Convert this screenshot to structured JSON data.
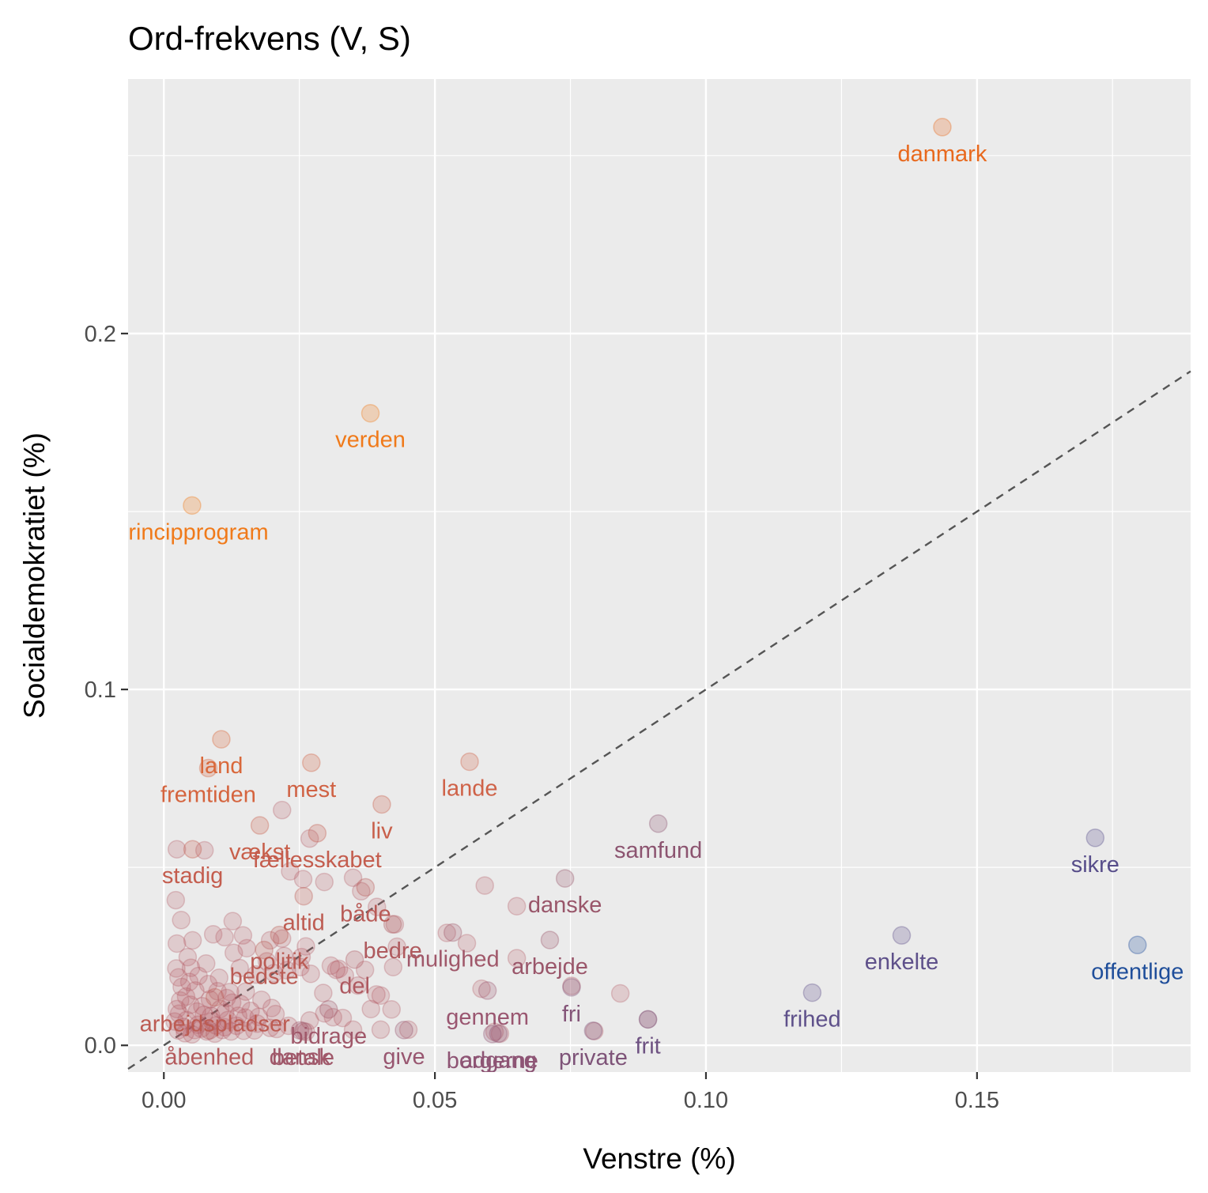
{
  "chart_data": {
    "type": "scatter",
    "title": "Ord-frekvens (V, S)",
    "xlabel": "Venstre (%)",
    "ylabel": "Socialdemokratiet (%)",
    "xlim": [
      -0.0066,
      0.1894
    ],
    "ylim": [
      -0.0075,
      0.2715
    ],
    "x_ticks": [
      0.0,
      0.05,
      0.1,
      0.15
    ],
    "x_tick_labels": [
      "0.00",
      "0.05",
      "0.10",
      "0.15"
    ],
    "y_ticks": [
      0.0,
      0.1,
      0.2
    ],
    "y_tick_labels": [
      "0.0",
      "0.1",
      "0.2"
    ],
    "grid": true,
    "legend": "none",
    "reference_line": {
      "type": "identity",
      "slope": 1,
      "intercept": 0,
      "style": "dashed",
      "color": "#555555"
    },
    "colors": {
      "panel_background": "#EBEBEB",
      "grid": "#FFFFFF",
      "high_S": "#F07A1A",
      "mid": "#B45A62",
      "low_S": "#5B4E8C",
      "high_V": "#1F4E9A"
    },
    "labeled_points": [
      {
        "word": "danmark",
        "x": 0.1436,
        "y": 0.258,
        "color": "#E8691E"
      },
      {
        "word": "verden",
        "x": 0.0381,
        "y": 0.1776,
        "color": "#F07A1A"
      },
      {
        "word": "principprogram",
        "x": 0.0052,
        "y": 0.1517,
        "color": "#F07A1A"
      },
      {
        "word": "land",
        "x": 0.0106,
        "y": 0.086,
        "color": "#D9683A"
      },
      {
        "word": "fremtiden",
        "x": 0.0082,
        "y": 0.0779,
        "color": "#D5643E"
      },
      {
        "word": "mest",
        "x": 0.0272,
        "y": 0.0794,
        "color": "#D06244"
      },
      {
        "word": "lande",
        "x": 0.0564,
        "y": 0.0797,
        "color": "#CF6248"
      },
      {
        "word": "liv",
        "x": 0.0402,
        "y": 0.0677,
        "color": "#C85F4A"
      },
      {
        "word": "vækst",
        "x": 0.0177,
        "y": 0.0618,
        "color": "#C85F4A"
      },
      {
        "word": "fællesskabet",
        "x": 0.0283,
        "y": 0.0596,
        "color": "#C45D4E"
      },
      {
        "word": "stadig",
        "x": 0.0053,
        "y": 0.0551,
        "color": "#C45D4E"
      },
      {
        "word": "samfund",
        "x": 0.0912,
        "y": 0.0623,
        "color": "#8C5470"
      },
      {
        "word": "sikre",
        "x": 0.1718,
        "y": 0.0583,
        "color": "#574D8A"
      },
      {
        "word": "altid",
        "x": 0.0258,
        "y": 0.0419,
        "color": "#BE5C52"
      },
      {
        "word": "både",
        "x": 0.0372,
        "y": 0.0444,
        "color": "#B85A56"
      },
      {
        "word": "danske",
        "x": 0.074,
        "y": 0.0469,
        "color": "#99566A"
      },
      {
        "word": "politik",
        "x": 0.0213,
        "y": 0.031,
        "color": "#BA5B54"
      },
      {
        "word": "mulighed",
        "x": 0.0533,
        "y": 0.0317,
        "color": "#A0586A"
      },
      {
        "word": "bedre",
        "x": 0.0422,
        "y": 0.034,
        "color": "#AF5A5E"
      },
      {
        "word": "enkelte",
        "x": 0.1361,
        "y": 0.0309,
        "color": "#5E508A"
      },
      {
        "word": "offentlige",
        "x": 0.1796,
        "y": 0.0282,
        "color": "#1F4E9A"
      },
      {
        "word": "arbejde",
        "x": 0.0712,
        "y": 0.0296,
        "color": "#9A566A"
      },
      {
        "word": "bedste",
        "x": 0.0185,
        "y": 0.0268,
        "color": "#BA5B54"
      },
      {
        "word": "del",
        "x": 0.0352,
        "y": 0.0241,
        "color": "#AE5960"
      },
      {
        "word": "gennem",
        "x": 0.0597,
        "y": 0.0154,
        "color": "#9A5670"
      },
      {
        "word": "arbejdspladser",
        "x": 0.0094,
        "y": 0.0135,
        "color": "#BC5B52"
      },
      {
        "word": "fri",
        "x": 0.0752,
        "y": 0.0163,
        "color": "#845478"
      },
      {
        "word": "frihed",
        "x": 0.1196,
        "y": 0.0148,
        "color": "#5E508A"
      },
      {
        "word": "bidrage",
        "x": 0.0304,
        "y": 0.0101,
        "color": "#A0586A"
      },
      {
        "word": "adgang",
        "x": 0.0617,
        "y": 0.0033,
        "color": "#8C5474"
      },
      {
        "word": "dansk",
        "x": 0.0251,
        "y": 0.0042,
        "color": "#A0586A"
      },
      {
        "word": "give",
        "x": 0.0443,
        "y": 0.0043,
        "color": "#985670"
      },
      {
        "word": "frit",
        "x": 0.0893,
        "y": 0.0073,
        "color": "#6E5282"
      },
      {
        "word": "åbenhed",
        "x": 0.0084,
        "y": 0.0042,
        "color": "#B45A5C"
      },
      {
        "word": "betale",
        "x": 0.0257,
        "y": 0.004,
        "color": "#A0586A"
      },
      {
        "word": "borgerne",
        "x": 0.0606,
        "y": 0.0032,
        "color": "#8E5474"
      },
      {
        "word": "private",
        "x": 0.0792,
        "y": 0.0041,
        "color": "#7E5378"
      }
    ],
    "other_points": [
      [
        0.0024,
        0.0551
      ],
      [
        0.0075,
        0.0548
      ],
      [
        0.0022,
        0.0408
      ],
      [
        0.0032,
        0.0352
      ],
      [
        0.0024,
        0.0286
      ],
      [
        0.0053,
        0.0295
      ],
      [
        0.0127,
        0.0349
      ],
      [
        0.0196,
        0.0295
      ],
      [
        0.0218,
        0.0661
      ],
      [
        0.0269,
        0.0581
      ],
      [
        0.0233,
        0.0489
      ],
      [
        0.0257,
        0.0467
      ],
      [
        0.0296,
        0.0459
      ],
      [
        0.0349,
        0.0471
      ],
      [
        0.0364,
        0.0433
      ],
      [
        0.0393,
        0.0389
      ],
      [
        0.0426,
        0.034
      ],
      [
        0.043,
        0.0277
      ],
      [
        0.0423,
        0.022
      ],
      [
        0.0371,
        0.0212
      ],
      [
        0.0318,
        0.0212
      ],
      [
        0.0262,
        0.0278
      ],
      [
        0.0222,
        0.0251
      ],
      [
        0.0203,
        0.0203
      ],
      [
        0.0153,
        0.0273
      ],
      [
        0.0112,
        0.0304
      ],
      [
        0.0091,
        0.0312
      ],
      [
        0.0146,
        0.0309
      ],
      [
        0.0522,
        0.0316
      ],
      [
        0.0559,
        0.0287
      ],
      [
        0.0592,
        0.0449
      ],
      [
        0.0651,
        0.0391
      ],
      [
        0.0586,
        0.0159
      ],
      [
        0.0651,
        0.0245
      ],
      [
        0.0752,
        0.0167
      ],
      [
        0.0842,
        0.0146
      ],
      [
        0.0794,
        0.004
      ],
      [
        0.0893,
        0.0073
      ],
      [
        0.062,
        0.0033
      ],
      [
        0.061,
        0.0038
      ],
      [
        0.0451,
        0.0044
      ],
      [
        0.04,
        0.0044
      ],
      [
        0.0349,
        0.0044
      ],
      [
        0.04,
        0.014
      ],
      [
        0.0382,
        0.0102
      ],
      [
        0.042,
        0.0101
      ],
      [
        0.0271,
        0.0201
      ],
      [
        0.0308,
        0.0224
      ],
      [
        0.0323,
        0.0215
      ],
      [
        0.0294,
        0.0147
      ],
      [
        0.0227,
        0.0211
      ],
      [
        0.0252,
        0.022
      ],
      [
        0.0129,
        0.026
      ],
      [
        0.017,
        0.0199
      ],
      [
        0.014,
        0.0217
      ],
      [
        0.019,
        0.0236
      ],
      [
        0.0218,
        0.03
      ],
      [
        0.0254,
        0.0248
      ],
      [
        0.0334,
        0.0196
      ],
      [
        0.0358,
        0.0168
      ],
      [
        0.0392,
        0.0143
      ],
      [
        0.0296,
        0.009
      ],
      [
        0.0269,
        0.007
      ],
      [
        0.0312,
        0.0079
      ],
      [
        0.033,
        0.0077
      ],
      [
        0.0262,
        0.0038
      ],
      [
        0.023,
        0.0055
      ],
      [
        0.0208,
        0.0046
      ],
      [
        0.0206,
        0.0088
      ],
      [
        0.018,
        0.0128
      ],
      [
        0.0199,
        0.0105
      ],
      [
        0.0151,
        0.0151
      ],
      [
        0.0142,
        0.0116
      ],
      [
        0.0126,
        0.012
      ],
      [
        0.0113,
        0.0092
      ],
      [
        0.015,
        0.0078
      ],
      [
        0.0172,
        0.0061
      ],
      [
        0.0196,
        0.0049
      ],
      [
        0.0167,
        0.0042
      ],
      [
        0.0147,
        0.0041
      ],
      [
        0.0124,
        0.0039
      ],
      [
        0.0108,
        0.0043
      ],
      [
        0.0096,
        0.0056
      ],
      [
        0.0089,
        0.0068
      ],
      [
        0.0074,
        0.0086
      ],
      [
        0.0061,
        0.0095
      ],
      [
        0.0049,
        0.0114
      ],
      [
        0.0041,
        0.0137
      ],
      [
        0.0033,
        0.0164
      ],
      [
        0.0027,
        0.0191
      ],
      [
        0.0023,
        0.0216
      ],
      [
        0.005,
        0.0218
      ],
      [
        0.0064,
        0.0195
      ],
      [
        0.0082,
        0.0172
      ],
      [
        0.0099,
        0.0152
      ],
      [
        0.0116,
        0.0133
      ],
      [
        0.0036,
        0.0052
      ],
      [
        0.0042,
        0.0071
      ],
      [
        0.0028,
        0.0089
      ],
      [
        0.0057,
        0.0043
      ],
      [
        0.0069,
        0.0047
      ],
      [
        0.0079,
        0.0039
      ],
      [
        0.0087,
        0.0083
      ],
      [
        0.0104,
        0.0102
      ],
      [
        0.0118,
        0.0071
      ],
      [
        0.0134,
        0.0055
      ],
      [
        0.016,
        0.0097
      ],
      [
        0.0175,
        0.008
      ],
      [
        0.0039,
        0.0034
      ],
      [
        0.0052,
        0.0031
      ],
      [
        0.0063,
        0.0058
      ],
      [
        0.0071,
        0.011
      ],
      [
        0.0085,
        0.0129
      ],
      [
        0.0047,
        0.0178
      ],
      [
        0.0058,
        0.0154
      ],
      [
        0.003,
        0.0126
      ],
      [
        0.0024,
        0.0102
      ],
      [
        0.002,
        0.0067
      ],
      [
        0.0026,
        0.0042
      ],
      [
        0.0094,
        0.0033
      ],
      [
        0.0112,
        0.0051
      ],
      [
        0.0137,
        0.0083
      ],
      [
        0.0122,
        0.015
      ],
      [
        0.0102,
        0.019
      ],
      [
        0.0078,
        0.023
      ],
      [
        0.0044,
        0.0248
      ]
    ]
  }
}
